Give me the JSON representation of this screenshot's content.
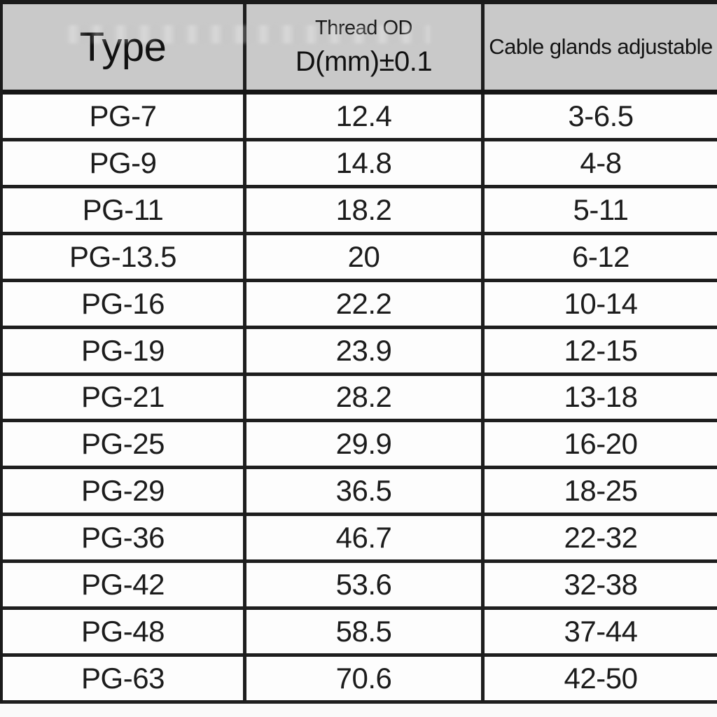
{
  "colors": {
    "header_bg": "#c9c9c9",
    "row_bg": "#fdfdfd",
    "border": "#1e1e1e",
    "text": "#1a1a1a"
  },
  "header": {
    "col_type": "Type",
    "col_thread_od_line1": "Thread OD",
    "col_thread_od_line2": "D(mm)±0.1",
    "col_adjustable": "Cable glands adjustable"
  },
  "rows": [
    {
      "type": "PG-7",
      "thread_od": "12.4",
      "adjustable_range": "3-6.5"
    },
    {
      "type": "PG-9",
      "thread_od": "14.8",
      "adjustable_range": "4-8"
    },
    {
      "type": "PG-11",
      "thread_od": "18.2",
      "adjustable_range": "5-11"
    },
    {
      "type": "PG-13.5",
      "thread_od": "20",
      "adjustable_range": "6-12"
    },
    {
      "type": "PG-16",
      "thread_od": "22.2",
      "adjustable_range": "10-14"
    },
    {
      "type": "PG-19",
      "thread_od": "23.9",
      "adjustable_range": "12-15"
    },
    {
      "type": "PG-21",
      "thread_od": "28.2",
      "adjustable_range": "13-18"
    },
    {
      "type": "PG-25",
      "thread_od": "29.9",
      "adjustable_range": "16-20"
    },
    {
      "type": "PG-29",
      "thread_od": "36.5",
      "adjustable_range": "18-25"
    },
    {
      "type": "PG-36",
      "thread_od": "46.7",
      "adjustable_range": "22-32"
    },
    {
      "type": "PG-42",
      "thread_od": "53.6",
      "adjustable_range": "32-38"
    },
    {
      "type": "PG-48",
      "thread_od": "58.5",
      "adjustable_range": "37-44"
    },
    {
      "type": "PG-63",
      "thread_od": "70.6",
      "adjustable_range": "42-50"
    }
  ],
  "chart_data": {
    "type": "table",
    "title": "",
    "columns": [
      "Type",
      "Thread OD D(mm)±0.1",
      "Cable glands adjustable"
    ],
    "rows": [
      [
        "PG-7",
        "12.4",
        "3-6.5"
      ],
      [
        "PG-9",
        "14.8",
        "4-8"
      ],
      [
        "PG-11",
        "18.2",
        "5-11"
      ],
      [
        "PG-13.5",
        "20",
        "6-12"
      ],
      [
        "PG-16",
        "22.2",
        "10-14"
      ],
      [
        "PG-19",
        "23.9",
        "12-15"
      ],
      [
        "PG-21",
        "28.2",
        "13-18"
      ],
      [
        "PG-25",
        "29.9",
        "16-20"
      ],
      [
        "PG-29",
        "36.5",
        "18-25"
      ],
      [
        "PG-36",
        "46.7",
        "22-32"
      ],
      [
        "PG-42",
        "53.6",
        "32-38"
      ],
      [
        "PG-48",
        "58.5",
        "37-44"
      ],
      [
        "PG-63",
        "70.6",
        "42-50"
      ]
    ]
  }
}
